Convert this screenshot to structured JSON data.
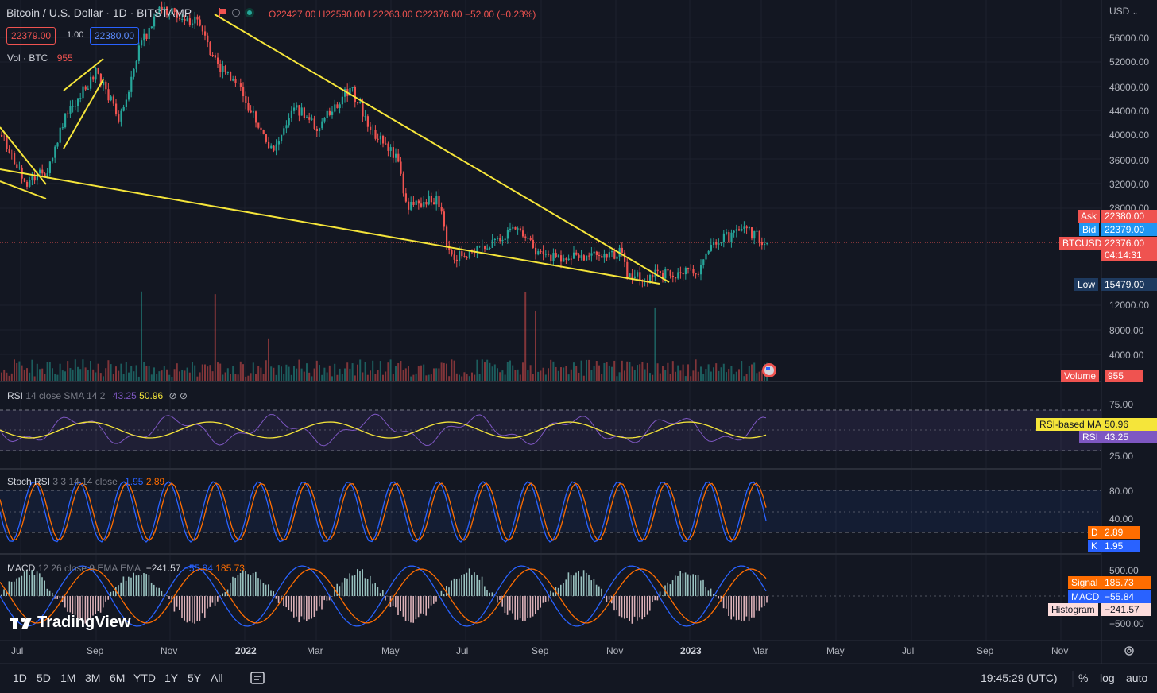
{
  "header": {
    "symbol": "Bitcoin / U.S. Dollar · 1D · BITSTAMP",
    "open": "O22427.00",
    "high": "H22590.00",
    "low": "L22263.00",
    "close": "C22376.00",
    "change": "−52.00 (−0.23%)",
    "sell_price": "22379.00",
    "spread": "1.00",
    "buy_price": "22380.00",
    "vol_label": "Vol · BTC",
    "vol_value": "955"
  },
  "currency": "USD",
  "price_axis": [
    "56000.00",
    "52000.00",
    "48000.00",
    "44000.00",
    "40000.00",
    "36000.00",
    "32000.00",
    "28000.00",
    "12000.00",
    "8000.00",
    "4000.00"
  ],
  "price_labels": {
    "ask_label": "Ask",
    "ask_value": "22380.00",
    "bid_label": "Bid",
    "bid_value": "22379.00",
    "symbol_label": "BTCUSD",
    "last_value": "22376.00",
    "countdown": "04:14:31",
    "low_label": "Low",
    "low_value": "15479.00",
    "volume_label": "Volume",
    "volume_value": "955"
  },
  "rsi": {
    "title": "RSI",
    "params": "14 close SMA 14 2",
    "value": "43.25",
    "ma_value": "50.96",
    "axis": [
      "75.00",
      "25.00"
    ],
    "ma_label": "RSI-based MA",
    "rsi_label": "RSI"
  },
  "stoch": {
    "title": "Stoch RSI",
    "params": "3 3 14 14 close",
    "k": "1.95",
    "d": "2.89",
    "axis": [
      "80.00",
      "40.00"
    ],
    "d_label": "D",
    "k_label": "K"
  },
  "macd": {
    "title": "MACD",
    "params": "12 26 close 9 EMA EMA",
    "hist": "−241.57",
    "macd": "−55.84",
    "signal": "185.73",
    "axis": [
      "500.00",
      "−500.00"
    ],
    "signal_label": "Signal",
    "macd_label": "MACD",
    "hist_label": "Histogram"
  },
  "time_axis": [
    "Jul",
    "Sep",
    "Nov",
    "2022",
    "Mar",
    "May",
    "Jul",
    "Sep",
    "Nov",
    "2023",
    "Mar",
    "May",
    "Jul",
    "Sep",
    "Nov"
  ],
  "timeframes": [
    "1D",
    "5D",
    "1M",
    "3M",
    "6M",
    "YTD",
    "1Y",
    "5Y",
    "All"
  ],
  "clock": "19:45:29 (UTC)",
  "scale_options": [
    "%",
    "log",
    "auto"
  ],
  "brand": "TradingView",
  "colors": {
    "bg": "#131722",
    "up": "#26a69a",
    "down": "#ef5350",
    "trend": "#f5e53a",
    "rsi": "#7e57c2",
    "blue": "#2962ff",
    "orange": "#ff6d00"
  }
}
